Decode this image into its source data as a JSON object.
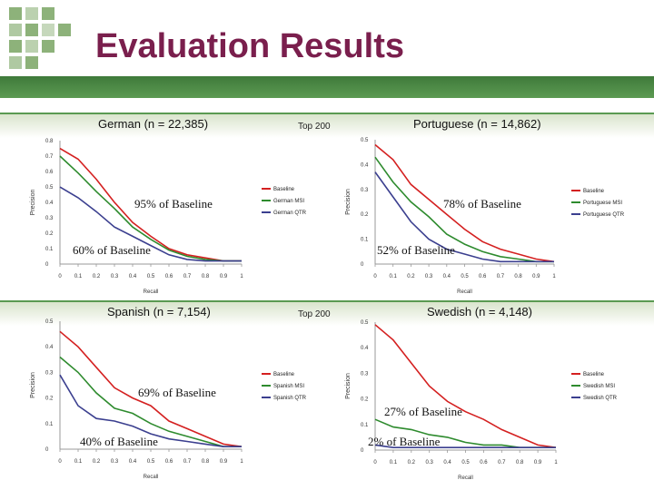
{
  "slide": {
    "title": "Evaluation Results"
  },
  "top200_labels": [
    "Top 200",
    "Top 200"
  ],
  "colors": {
    "baseline": "#d42020",
    "msi": "#2e8b2e",
    "qtr": "#3b3f8f",
    "title": "#7a1f4d",
    "band": "#4f8a47"
  },
  "chart_data": [
    {
      "type": "line",
      "title": "German (n = 22,385)",
      "xlabel": "Recall",
      "ylabel": "Precision",
      "x": [
        0,
        0.1,
        0.2,
        0.3,
        0.4,
        0.5,
        0.6,
        0.7,
        0.8,
        0.9,
        1
      ],
      "xticks": [
        "0",
        "0.1",
        "0.2",
        "0.3",
        "0.4",
        "0.5",
        "0.6",
        "0.7",
        "0.8",
        "0.9",
        "1"
      ],
      "ylim": [
        0,
        0.8
      ],
      "yticks": [
        "0",
        "0.1",
        "0.2",
        "0.3",
        "0.4",
        "0.5",
        "0.6",
        "0.7",
        "0.8"
      ],
      "series": [
        {
          "name": "Baseline",
          "values": [
            0.75,
            0.68,
            0.55,
            0.4,
            0.27,
            0.18,
            0.1,
            0.06,
            0.04,
            0.02,
            0.02
          ]
        },
        {
          "name": "German MSI",
          "values": [
            0.7,
            0.59,
            0.47,
            0.36,
            0.24,
            0.16,
            0.09,
            0.05,
            0.03,
            0.02,
            0.02
          ]
        },
        {
          "name": "German QTR",
          "values": [
            0.5,
            0.43,
            0.34,
            0.24,
            0.18,
            0.12,
            0.06,
            0.03,
            0.02,
            0.02,
            0.02
          ]
        }
      ],
      "annotations": [
        "95% of Baseline",
        "60% of Baseline"
      ]
    },
    {
      "type": "line",
      "title": "Portuguese (n = 14,862)",
      "xlabel": "Recall",
      "ylabel": "Precision",
      "x": [
        0,
        0.1,
        0.2,
        0.3,
        0.4,
        0.5,
        0.6,
        0.7,
        0.8,
        0.9,
        1
      ],
      "xticks": [
        "0",
        "0.1",
        "0.2",
        "0.3",
        "0.4",
        "0.5",
        "0.6",
        "0.7",
        "0.8",
        "0.9",
        "1"
      ],
      "ylim": [
        0,
        0.5
      ],
      "yticks": [
        "0",
        "0.1",
        "0.2",
        "0.3",
        "0.4",
        "0.5"
      ],
      "series": [
        {
          "name": "Baseline",
          "values": [
            0.48,
            0.42,
            0.32,
            0.26,
            0.2,
            0.14,
            0.09,
            0.06,
            0.04,
            0.02,
            0.01
          ]
        },
        {
          "name": "Portuguese MSI",
          "values": [
            0.43,
            0.33,
            0.25,
            0.19,
            0.12,
            0.08,
            0.05,
            0.03,
            0.02,
            0.01,
            0.01
          ]
        },
        {
          "name": "Portuguese QTR",
          "values": [
            0.37,
            0.27,
            0.17,
            0.1,
            0.06,
            0.04,
            0.02,
            0.01,
            0.01,
            0.01,
            0.01
          ]
        }
      ],
      "annotations": [
        "78% of Baseline",
        "52% of Baseline"
      ]
    },
    {
      "type": "line",
      "title": "Spanish (n = 7,154)",
      "xlabel": "Recall",
      "ylabel": "Precision",
      "x": [
        0,
        0.1,
        0.2,
        0.3,
        0.4,
        0.5,
        0.6,
        0.7,
        0.8,
        0.9,
        1
      ],
      "xticks": [
        "0",
        "0.1",
        "0.2",
        "0.3",
        "0.4",
        "0.5",
        "0.6",
        "0.7",
        "0.8",
        "0.9",
        "1"
      ],
      "ylim": [
        0,
        0.5
      ],
      "yticks": [
        "0",
        "0.1",
        "0.2",
        "0.3",
        "0.4",
        "0.5"
      ],
      "series": [
        {
          "name": "Baseline",
          "values": [
            0.46,
            0.4,
            0.32,
            0.24,
            0.2,
            0.17,
            0.11,
            0.08,
            0.05,
            0.02,
            0.01
          ]
        },
        {
          "name": "Spanish MSI",
          "values": [
            0.36,
            0.3,
            0.22,
            0.16,
            0.14,
            0.1,
            0.07,
            0.05,
            0.03,
            0.01,
            0.01
          ]
        },
        {
          "name": "Spanish QTR",
          "values": [
            0.29,
            0.17,
            0.12,
            0.11,
            0.09,
            0.06,
            0.04,
            0.03,
            0.02,
            0.01,
            0.01
          ]
        }
      ],
      "annotations": [
        "69% of Baseline",
        "40% of Baseline"
      ]
    },
    {
      "type": "line",
      "title": "Swedish (n = 4,148)",
      "xlabel": "Recall",
      "ylabel": "Precision",
      "x": [
        0,
        0.1,
        0.2,
        0.3,
        0.4,
        0.5,
        0.6,
        0.7,
        0.8,
        0.9,
        1
      ],
      "xticks": [
        "0",
        "0.1",
        "0.2",
        "0.3",
        "0.4",
        "0.5",
        "0.6",
        "0.7",
        "0.8",
        "0.9",
        "1"
      ],
      "ylim": [
        0,
        0.5
      ],
      "yticks": [
        "0",
        "0.1",
        "0.2",
        "0.3",
        "0.4",
        "0.5"
      ],
      "series": [
        {
          "name": "Baseline",
          "values": [
            0.49,
            0.43,
            0.34,
            0.25,
            0.19,
            0.15,
            0.12,
            0.08,
            0.05,
            0.02,
            0.01
          ]
        },
        {
          "name": "Swedish MSI",
          "values": [
            0.12,
            0.09,
            0.08,
            0.06,
            0.05,
            0.03,
            0.02,
            0.02,
            0.01,
            0.01,
            0.01
          ]
        },
        {
          "name": "Swedish QTR",
          "values": [
            0.02,
            0.01,
            0.01,
            0.01,
            0.01,
            0.01,
            0.01,
            0.01,
            0.01,
            0.01,
            0.01
          ]
        }
      ],
      "annotations": [
        "27% of Baseline",
        "2% of Baseline"
      ]
    }
  ]
}
